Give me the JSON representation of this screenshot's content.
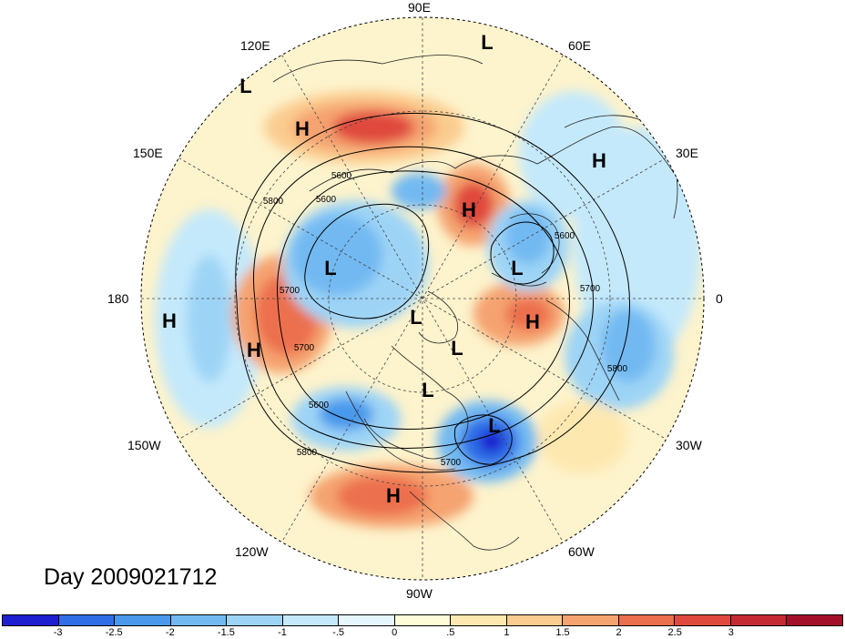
{
  "map": {
    "title": "Day 2009021712",
    "projection": "polar-stereographic-north",
    "longitude_labels": [
      {
        "text": "90E",
        "pos": "top"
      },
      {
        "text": "60E",
        "pos": "upper-right"
      },
      {
        "text": "30E",
        "pos": "right-upper"
      },
      {
        "text": "0",
        "pos": "right"
      },
      {
        "text": "30W",
        "pos": "right-lower"
      },
      {
        "text": "60W",
        "pos": "lower-right"
      },
      {
        "text": "90W",
        "pos": "bottom"
      },
      {
        "text": "120W",
        "pos": "lower-left"
      },
      {
        "text": "150W",
        "pos": "left-lower"
      },
      {
        "text": "180",
        "pos": "left"
      },
      {
        "text": "150E",
        "pos": "left-upper"
      },
      {
        "text": "120E",
        "pos": "upper-left"
      }
    ],
    "pressure_centers": [
      {
        "type": "L",
        "loc": "north-asia-top"
      },
      {
        "type": "L",
        "loc": "upper-left-edge"
      },
      {
        "type": "H",
        "loc": "east-asia"
      },
      {
        "type": "H",
        "loc": "north-africa"
      },
      {
        "type": "H",
        "loc": "siberia-central"
      },
      {
        "type": "L",
        "loc": "east-siberia"
      },
      {
        "type": "L",
        "loc": "scandinavia"
      },
      {
        "type": "H",
        "loc": "pacific-west"
      },
      {
        "type": "H",
        "loc": "north-pacific"
      },
      {
        "type": "H",
        "loc": "greenland-east"
      },
      {
        "type": "L",
        "loc": "pole"
      },
      {
        "type": "L",
        "loc": "greenland"
      },
      {
        "type": "L",
        "loc": "hudson-bay"
      },
      {
        "type": "L",
        "loc": "north-atlantic"
      },
      {
        "type": "H",
        "loc": "mexico"
      }
    ],
    "contour_labels": [
      "5600",
      "5800",
      "5600",
      "5700",
      "5700",
      "5600",
      "5800",
      "5700",
      "5800",
      "5600",
      "5700"
    ]
  },
  "colorbar": {
    "colors": [
      "#1d1fd0",
      "#2f6ee6",
      "#4a99ec",
      "#72b9f2",
      "#9dd4f6",
      "#c4e9fb",
      "#e6f7fd",
      "#fefbd9",
      "#fde8b0",
      "#fbcc8f",
      "#f5a36f",
      "#ec6f4d",
      "#e04a3e",
      "#c62a33",
      "#a4102a"
    ],
    "ticks": [
      "-3",
      "-2.5",
      "-2",
      "-1.5",
      "-1",
      "-.5",
      "0",
      ".5",
      "1",
      "1.5",
      "2",
      "2.5",
      "3"
    ]
  }
}
